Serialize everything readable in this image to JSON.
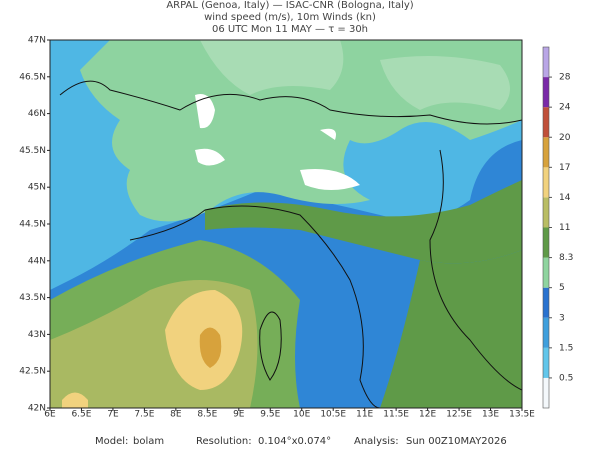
{
  "header": {
    "lines": [
      "ARPAL (Genoa, Italy)  —  ISAC-CNR (Bologna, Italy)",
      "wind speed (m/s), 10m Winds (kn)",
      "06 UTC Mon 11 MAY  —  τ = 30h"
    ]
  },
  "map": {
    "lon_ticks": [
      {
        "value": 6,
        "label": "6E"
      },
      {
        "value": 6.5,
        "label": "6.5E"
      },
      {
        "value": 7,
        "label": "7E"
      },
      {
        "value": 7.5,
        "label": "7.5E"
      },
      {
        "value": 8,
        "label": "8E"
      },
      {
        "value": 8.5,
        "label": "8.5E"
      },
      {
        "value": 9,
        "label": "9E"
      },
      {
        "value": 9.5,
        "label": "9.5E"
      },
      {
        "value": 10,
        "label": "10E"
      },
      {
        "value": 10.5,
        "label": "10.5E"
      },
      {
        "value": 11,
        "label": "11E"
      },
      {
        "value": 11.5,
        "label": "11.5E"
      },
      {
        "value": 12,
        "label": "12E"
      },
      {
        "value": 12.5,
        "label": "12.5E"
      },
      {
        "value": 13,
        "label": "13E"
      },
      {
        "value": 13.5,
        "label": "13.5E"
      }
    ],
    "lat_ticks": [
      {
        "value": 42,
        "label": "42N"
      },
      {
        "value": 42.5,
        "label": "42.5N"
      },
      {
        "value": 43,
        "label": "43N"
      },
      {
        "value": 43.5,
        "label": "43.5N"
      },
      {
        "value": 44,
        "label": "44N"
      },
      {
        "value": 44.5,
        "label": "44.5N"
      },
      {
        "value": 45,
        "label": "45N"
      },
      {
        "value": 45.5,
        "label": "45.5N"
      },
      {
        "value": 46,
        "label": "46N"
      },
      {
        "value": 46.5,
        "label": "46.5N"
      },
      {
        "value": 47,
        "label": "47N"
      }
    ]
  },
  "colorbar": {
    "levels": [
      0.5,
      1.5,
      3,
      5,
      8.3,
      11,
      14,
      17,
      20,
      24,
      28
    ],
    "colors": [
      "#f4f8fb",
      "#62c6ea",
      "#3f9fdc",
      "#2a72cf",
      "#8fd49f",
      "#5f9a48",
      "#b9bd64",
      "#f1d27e",
      "#d7a23c",
      "#c0503a",
      "#7a2aa8",
      "#b9a6e6"
    ]
  },
  "footer": {
    "model_label": "Model:",
    "model": "bolam",
    "resolution_label": "Resolution:",
    "resolution": "0.104°x0.074°",
    "analysis_label": "Analysis:",
    "analysis": "Sun 00Z10MAY2026"
  }
}
